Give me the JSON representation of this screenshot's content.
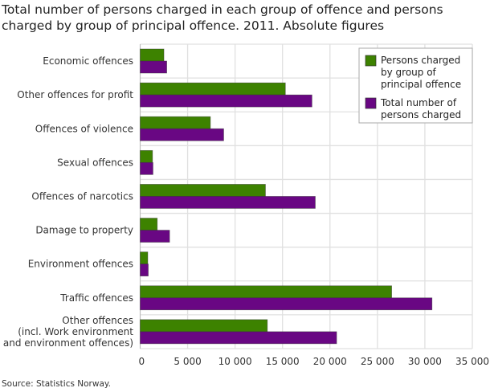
{
  "chart_data": {
    "type": "bar",
    "orientation": "horizontal",
    "title": "Total number of persons charged in each group of offence and persons charged by group of principal offence. 2011. Absolute figures",
    "source": "Source: Statistics Norway.",
    "categories": [
      [
        "Economic offences"
      ],
      [
        "Other offences for profit"
      ],
      [
        "Offences of violence"
      ],
      [
        "Sexual offences"
      ],
      [
        "Offences of narcotics"
      ],
      [
        "Damage to property"
      ],
      [
        "Environment offences"
      ],
      [
        "Traffic offences"
      ],
      [
        "Other offences",
        "(incl. Work environment",
        "and environment offences)"
      ]
    ],
    "series": [
      {
        "name": "Persons charged by group of principal offence",
        "legend_lines": [
          "Persons charged",
          "by group of",
          "principal offence"
        ],
        "color": "#3d8200",
        "values": [
          2500,
          15300,
          7400,
          1300,
          13200,
          1800,
          800,
          26500,
          13400
        ]
      },
      {
        "name": "Total number of persons charged",
        "legend_lines": [
          "Total number of",
          "persons charged"
        ],
        "color": "#690783",
        "values": [
          2800,
          18100,
          8800,
          1350,
          18450,
          3100,
          850,
          30750,
          20700
        ]
      }
    ],
    "xlim": [
      0,
      35000
    ],
    "xticks": [
      0,
      5000,
      10000,
      15000,
      20000,
      25000,
      30000,
      35000
    ],
    "xtick_labels": [
      "0",
      "5 000",
      "10 000",
      "15 000",
      "20 000",
      "25 000",
      "30 000",
      "35 000"
    ],
    "grid": true,
    "legend_position": "top-right"
  }
}
